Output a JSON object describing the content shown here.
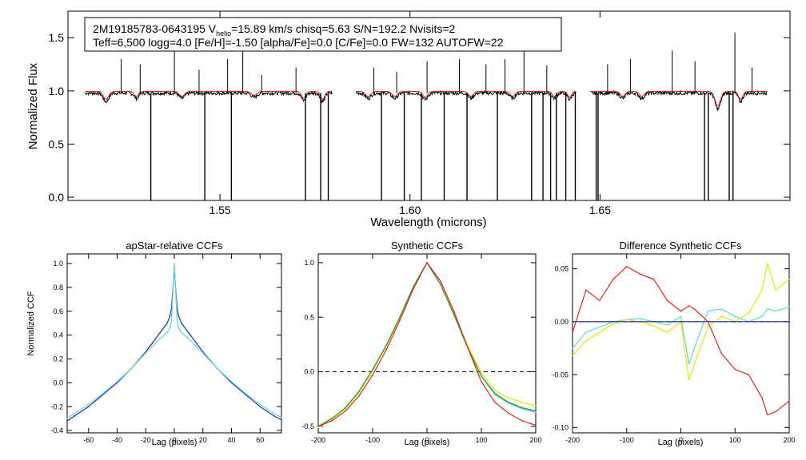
{
  "chart_data": [
    {
      "id": "spectrum",
      "type": "line",
      "title": "",
      "xlabel": "Wavelength (microns)",
      "ylabel": "Normalized Flux",
      "xlim": [
        1.51,
        1.7
      ],
      "ylim": [
        -0.03,
        1.75
      ],
      "xticks": [
        1.55,
        1.6,
        1.65
      ],
      "xtick_labels": [
        "1.55",
        "1.60",
        "1.65"
      ],
      "yticks": [
        0.0,
        0.5,
        1.0,
        1.5
      ],
      "ytick_labels": [
        "0.0",
        "0.5",
        "1.0",
        "1.5"
      ],
      "info_box": {
        "line1_prefix": "2M19185783-0643195  V",
        "line1_sub": "helio",
        "line1_suffix": "=15.89 km/s  chisq=5.63  S/N=192.2  Nvisits=2",
        "line2": "Teff=6,500 logg=4.0 [Fe/H]=-1.50 [alpha/Fe]=0.0 [C/Fe]=0.0 FW=132 AUTOFW=22"
      },
      "chips": [
        [
          1.5145,
          1.5795
        ],
        [
          1.5858,
          1.6437
        ],
        [
          1.6475,
          1.694
        ]
      ],
      "continuum": 0.98,
      "model_continuum": 0.995,
      "absorption_dips": [
        [
          1.52,
          0.08,
          0.001
        ],
        [
          1.528,
          0.05,
          0.0008
        ],
        [
          1.54,
          0.05,
          0.001
        ],
        [
          1.559,
          0.04,
          0.001
        ],
        [
          1.572,
          0.07,
          0.0008
        ],
        [
          1.577,
          0.08,
          0.0008
        ],
        [
          1.589,
          0.05,
          0.001
        ],
        [
          1.596,
          0.05,
          0.001
        ],
        [
          1.604,
          0.06,
          0.0009
        ],
        [
          1.616,
          0.05,
          0.0009
        ],
        [
          1.627,
          0.05,
          0.0009
        ],
        [
          1.638,
          0.05,
          0.0008
        ],
        [
          1.642,
          0.06,
          0.0007
        ],
        [
          1.656,
          0.05,
          0.0009
        ],
        [
          1.661,
          0.05,
          0.0009
        ],
        [
          1.681,
          0.15,
          0.001
        ],
        [
          1.687,
          0.08,
          0.0008
        ]
      ],
      "spikes_down": [
        1.5318,
        1.546,
        1.553,
        1.5725,
        1.5765,
        1.5785,
        1.5925,
        1.5985,
        1.603,
        1.609,
        1.615,
        1.623,
        1.632,
        1.635,
        1.637,
        1.6385,
        1.641,
        1.6435,
        1.649,
        1.6495,
        1.6775,
        1.6785,
        1.684,
        1.685
      ],
      "spikes_up": [
        [
          1.524,
          1.3
        ],
        [
          1.529,
          1.25
        ],
        [
          1.538,
          1.45
        ],
        [
          1.5445,
          1.2
        ],
        [
          1.552,
          1.3
        ],
        [
          1.556,
          1.55
        ],
        [
          1.561,
          1.15
        ],
        [
          1.57,
          1.22
        ],
        [
          1.5905,
          1.22
        ],
        [
          1.5965,
          1.18
        ],
        [
          1.6045,
          1.28
        ],
        [
          1.613,
          1.3
        ],
        [
          1.62,
          1.25
        ],
        [
          1.625,
          1.3
        ],
        [
          1.63,
          1.4
        ],
        [
          1.636,
          1.24
        ],
        [
          1.652,
          1.25
        ],
        [
          1.658,
          1.3
        ],
        [
          1.669,
          1.38
        ],
        [
          1.675,
          1.28
        ],
        [
          1.6855,
          1.55
        ],
        [
          1.69,
          1.22
        ]
      ],
      "series": [
        {
          "name": "observed",
          "color": "#000000"
        },
        {
          "name": "model",
          "color": "#e0261f"
        }
      ]
    },
    {
      "id": "ccf_apstar",
      "type": "line",
      "title": "apStar-relative CCFs",
      "xlabel": "Lag (pixels)",
      "ylabel": "Normalized CCF",
      "xlim": [
        -75,
        75
      ],
      "ylim": [
        -0.42,
        1.08
      ],
      "xticks": [
        -60,
        -40,
        -20,
        0,
        20,
        40,
        60
      ],
      "xtick_labels": [
        "-60",
        "-40",
        "-20",
        "0",
        "20",
        "40",
        "60"
      ],
      "yticks": [
        -0.4,
        -0.2,
        0.0,
        0.2,
        0.4,
        0.6,
        0.8,
        1.0
      ],
      "ytick_labels": [
        "-0.4",
        "-0.2",
        "0.0",
        "0.2",
        "0.4",
        "0.6",
        "0.8",
        "1.0"
      ],
      "lag": [
        -75,
        -70,
        -60,
        -50,
        -40,
        -30,
        -20,
        -15,
        -10,
        -5,
        -3,
        -2,
        -1,
        0,
        1,
        2,
        3,
        5,
        10,
        15,
        20,
        30,
        40,
        50,
        60,
        70,
        75
      ],
      "series": [
        {
          "name": "visit 1",
          "color": "#2233aa",
          "values": [
            -0.32,
            -0.28,
            -0.2,
            -0.1,
            0.0,
            0.12,
            0.26,
            0.34,
            0.42,
            0.5,
            0.56,
            0.62,
            0.78,
            0.97,
            0.78,
            0.62,
            0.56,
            0.5,
            0.42,
            0.34,
            0.26,
            0.12,
            0.0,
            -0.1,
            -0.2,
            -0.28,
            -0.31
          ]
        },
        {
          "name": "visit 2",
          "color": "#5fd9d9",
          "values": [
            -0.3,
            -0.26,
            -0.18,
            -0.09,
            0.01,
            0.12,
            0.25,
            0.31,
            0.37,
            0.42,
            0.46,
            0.52,
            0.75,
            1.0,
            0.75,
            0.52,
            0.46,
            0.42,
            0.37,
            0.31,
            0.25,
            0.12,
            0.01,
            -0.09,
            -0.18,
            -0.26,
            -0.29
          ]
        }
      ]
    },
    {
      "id": "ccf_synth",
      "type": "line",
      "title": "Synthetic CCFs",
      "xlabel": "Lag (pixels)",
      "ylabel": "",
      "xlim": [
        -200,
        200
      ],
      "ylim": [
        -0.56,
        1.08
      ],
      "xticks": [
        -200,
        -100,
        0,
        100,
        200
      ],
      "xtick_labels": [
        "-200",
        "-100",
        "0",
        "100",
        "200"
      ],
      "yticks": [
        -0.5,
        0.0,
        0.5,
        1.0
      ],
      "ytick_labels": [
        "-0.5",
        "0.0",
        "0.5",
        "1.0"
      ],
      "zero_line": 0.0,
      "lag": [
        -200,
        -175,
        -150,
        -125,
        -100,
        -75,
        -50,
        -25,
        0,
        25,
        50,
        75,
        100,
        125,
        150,
        175,
        200
      ],
      "series": [
        {
          "name": "combined",
          "color": "#2233aa",
          "values": [
            -0.5,
            -0.43,
            -0.33,
            -0.18,
            0.02,
            0.24,
            0.5,
            0.78,
            1.0,
            0.8,
            0.52,
            0.22,
            -0.04,
            -0.2,
            -0.28,
            -0.33,
            -0.36
          ]
        },
        {
          "name": "synthetic 1",
          "color": "#5fd9d9",
          "values": [
            -0.5,
            -0.43,
            -0.33,
            -0.18,
            0.02,
            0.24,
            0.5,
            0.78,
            1.0,
            0.8,
            0.52,
            0.22,
            -0.04,
            -0.21,
            -0.29,
            -0.34,
            -0.37
          ]
        },
        {
          "name": "synthetic 2",
          "color": "#e6e600",
          "values": [
            -0.51,
            -0.44,
            -0.34,
            -0.19,
            0.01,
            0.23,
            0.49,
            0.77,
            1.0,
            0.8,
            0.53,
            0.24,
            -0.01,
            -0.17,
            -0.24,
            -0.28,
            -0.31
          ]
        },
        {
          "name": "synthetic 3",
          "color": "#2ca02c",
          "values": [
            -0.5,
            -0.43,
            -0.33,
            -0.18,
            0.02,
            0.24,
            0.5,
            0.78,
            1.0,
            0.8,
            0.52,
            0.22,
            -0.04,
            -0.2,
            -0.28,
            -0.33,
            -0.36
          ]
        },
        {
          "name": "difference",
          "color": "#e0261f",
          "values": [
            -0.5,
            -0.45,
            -0.36,
            -0.22,
            -0.03,
            0.2,
            0.47,
            0.76,
            1.0,
            0.83,
            0.55,
            0.22,
            -0.09,
            -0.28,
            -0.38,
            -0.45,
            -0.49
          ]
        }
      ]
    },
    {
      "id": "ccf_diff",
      "type": "line",
      "title": "Difference Synthetic CCFs",
      "xlabel": "Lag (pixels)",
      "ylabel": "",
      "xlim": [
        -200,
        200
      ],
      "ylim": [
        -0.105,
        0.064
      ],
      "xticks": [
        -200,
        -100,
        0,
        100,
        200
      ],
      "xtick_labels": [
        "-200",
        "-100",
        "0",
        "100",
        "200"
      ],
      "yticks": [
        -0.1,
        -0.05,
        0.0,
        0.05
      ],
      "ytick_labels": [
        "-0.10",
        "-0.05",
        "0.00",
        "0.05"
      ],
      "zero_line": 0.0,
      "lag": [
        -200,
        -175,
        -150,
        -125,
        -100,
        -75,
        -50,
        -25,
        0,
        15,
        25,
        50,
        75,
        100,
        125,
        150,
        160,
        175,
        200
      ],
      "series": [
        {
          "name": "synthetic 1",
          "color": "#5fd9d9",
          "values": [
            -0.025,
            -0.01,
            -0.005,
            0.0,
            0.002,
            0.003,
            0.0,
            -0.003,
            0.005,
            -0.04,
            -0.025,
            0.01,
            0.012,
            0.005,
            0.0,
            0.005,
            0.012,
            0.01,
            0.014
          ]
        },
        {
          "name": "synthetic 2",
          "color": "#e6e600",
          "values": [
            -0.032,
            -0.018,
            -0.01,
            -0.002,
            0.002,
            0.0,
            -0.004,
            -0.01,
            0.0,
            -0.055,
            -0.04,
            -0.005,
            0.005,
            0.0,
            0.008,
            0.03,
            0.055,
            0.03,
            0.04
          ]
        },
        {
          "name": "synthetic 3",
          "color": "#2233aa",
          "values": [
            0.0,
            0.0,
            0.0,
            0.0,
            0.0,
            0.0,
            0.0,
            0.0,
            0.0,
            0.0,
            0.0,
            0.0,
            0.0,
            0.0,
            0.0,
            0.0,
            0.0,
            0.0,
            0.0
          ]
        },
        {
          "name": "difference",
          "color": "#e0261f",
          "values": [
            -0.01,
            0.03,
            0.02,
            0.04,
            0.052,
            0.045,
            0.04,
            0.02,
            0.01,
            0.015,
            0.012,
            0.0,
            -0.03,
            -0.045,
            -0.05,
            -0.072,
            -0.088,
            -0.085,
            -0.075
          ]
        }
      ]
    }
  ]
}
